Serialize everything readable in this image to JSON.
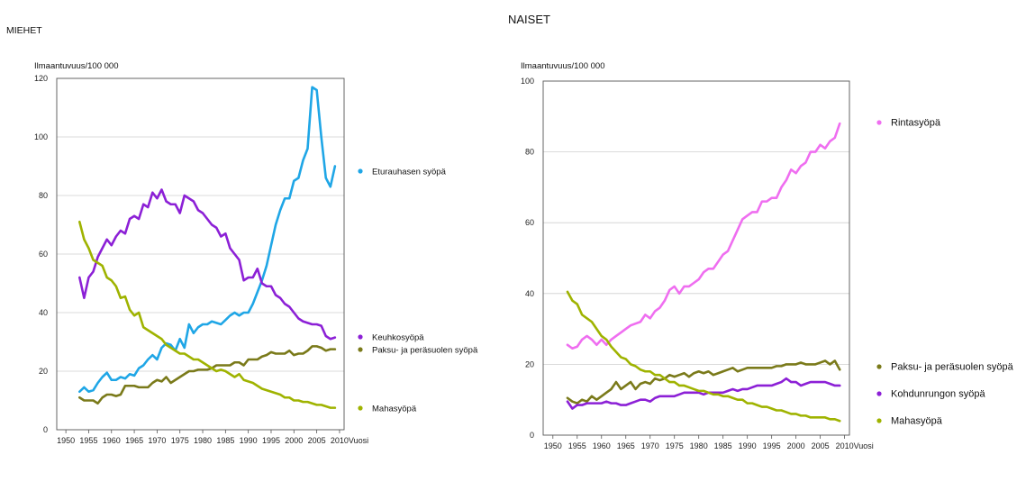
{
  "chart_data": [
    {
      "type": "line",
      "title": "MIEHET",
      "ylabel": "Ilmaantuvuus/100 000",
      "xlabel": "Vuosi",
      "xlim": [
        1948,
        2011
      ],
      "ylim": [
        0,
        120
      ],
      "xticks": [
        1950,
        1955,
        1960,
        1965,
        1970,
        1975,
        1980,
        1985,
        1990,
        1995,
        2000,
        2005,
        2010
      ],
      "yticks": [
        0,
        20,
        40,
        60,
        80,
        100,
        120
      ],
      "grid": "horizontal",
      "legend": "right",
      "series": [
        {
          "name": "Eturauhasen syöpä",
          "color": "#1fa6e6",
          "x": [
            1953,
            1954,
            1955,
            1956,
            1957,
            1958,
            1959,
            1960,
            1961,
            1962,
            1963,
            1964,
            1965,
            1966,
            1967,
            1968,
            1969,
            1970,
            1971,
            1972,
            1973,
            1974,
            1975,
            1976,
            1977,
            1978,
            1979,
            1980,
            1981,
            1982,
            1983,
            1984,
            1985,
            1986,
            1987,
            1988,
            1989,
            1990,
            1991,
            1992,
            1993,
            1994,
            1995,
            1996,
            1997,
            1998,
            1999,
            2000,
            2001,
            2002,
            2003,
            2004,
            2005,
            2006,
            2007,
            2008,
            2009
          ],
          "values": [
            13,
            14.5,
            13,
            13.5,
            16,
            18,
            19.5,
            17,
            17,
            18,
            17.5,
            19,
            18.5,
            21,
            22,
            24,
            25.5,
            24,
            28,
            29.5,
            29,
            27,
            31,
            28,
            36,
            33,
            35,
            36,
            36,
            37,
            36.5,
            36,
            37.5,
            39,
            40,
            39,
            40,
            40,
            43,
            47,
            51,
            56,
            63,
            70,
            75,
            79,
            79,
            85,
            86,
            92,
            96,
            117,
            116,
            100,
            86,
            83,
            90
          ]
        },
        {
          "name": "Keuhkosyöpä",
          "color": "#8c20d6",
          "x": [
            1953,
            1954,
            1955,
            1956,
            1957,
            1958,
            1959,
            1960,
            1961,
            1962,
            1963,
            1964,
            1965,
            1966,
            1967,
            1968,
            1969,
            1970,
            1971,
            1972,
            1973,
            1974,
            1975,
            1976,
            1977,
            1978,
            1979,
            1980,
            1981,
            1982,
            1983,
            1984,
            1985,
            1986,
            1987,
            1988,
            1989,
            1990,
            1991,
            1992,
            1993,
            1994,
            1995,
            1996,
            1997,
            1998,
            1999,
            2000,
            2001,
            2002,
            2003,
            2004,
            2005,
            2006,
            2007,
            2008,
            2009
          ],
          "values": [
            52,
            45,
            52,
            54,
            59,
            62,
            65,
            63,
            66,
            68,
            67,
            72,
            73,
            72,
            77,
            76,
            81,
            79,
            82,
            78,
            77,
            77,
            74,
            80,
            79,
            78,
            75,
            74,
            72,
            70,
            69,
            66,
            67,
            62,
            60,
            58,
            51,
            52,
            52,
            55,
            50,
            49,
            49,
            46,
            45,
            43,
            42,
            40,
            38,
            37,
            36.5,
            36,
            36,
            35.5,
            32,
            31,
            31.5
          ]
        },
        {
          "name": "Paksu- ja peräsuolen syöpä",
          "color": "#7a7a1a",
          "x": [
            1953,
            1954,
            1955,
            1956,
            1957,
            1958,
            1959,
            1960,
            1961,
            1962,
            1963,
            1964,
            1965,
            1966,
            1967,
            1968,
            1969,
            1970,
            1971,
            1972,
            1973,
            1974,
            1975,
            1976,
            1977,
            1978,
            1979,
            1980,
            1981,
            1982,
            1983,
            1984,
            1985,
            1986,
            1987,
            1988,
            1989,
            1990,
            1991,
            1992,
            1993,
            1994,
            1995,
            1996,
            1997,
            1998,
            1999,
            2000,
            2001,
            2002,
            2003,
            2004,
            2005,
            2006,
            2007,
            2008,
            2009
          ],
          "values": [
            11,
            10,
            10,
            10,
            9,
            11,
            12,
            12,
            11.5,
            12,
            15,
            15,
            15,
            14.5,
            14.5,
            14.5,
            16,
            17,
            16.5,
            18,
            16,
            17,
            18,
            19,
            20,
            20,
            20.5,
            20.5,
            20.5,
            21,
            22,
            22,
            22,
            22,
            23,
            23,
            22,
            24,
            24,
            24,
            25,
            25.5,
            26.5,
            26,
            26,
            26,
            27,
            25.5,
            26,
            26,
            27,
            28.5,
            28.5,
            28,
            27,
            27.5,
            27.5
          ]
        },
        {
          "name": "Mahasyöpä",
          "color": "#9fb300",
          "x": [
            1953,
            1954,
            1955,
            1956,
            1957,
            1958,
            1959,
            1960,
            1961,
            1962,
            1963,
            1964,
            1965,
            1966,
            1967,
            1968,
            1969,
            1970,
            1971,
            1972,
            1973,
            1974,
            1975,
            1976,
            1977,
            1978,
            1979,
            1980,
            1981,
            1982,
            1983,
            1984,
            1985,
            1986,
            1987,
            1988,
            1989,
            1990,
            1991,
            1992,
            1993,
            1994,
            1995,
            1996,
            1997,
            1998,
            1999,
            2000,
            2001,
            2002,
            2003,
            2004,
            2005,
            2006,
            2007,
            2008,
            2009
          ],
          "values": [
            71,
            65,
            62,
            58,
            57,
            56,
            52,
            51,
            49,
            45,
            45.5,
            41,
            39,
            40,
            35,
            34,
            33,
            32,
            31,
            29,
            28,
            27,
            26,
            26,
            25,
            24,
            24,
            23,
            22,
            21,
            20,
            20.5,
            20,
            19,
            18,
            19,
            17,
            16.5,
            16,
            15,
            14,
            13.5,
            13,
            12.5,
            12,
            11,
            11,
            10,
            10,
            9.5,
            9.5,
            9,
            8.5,
            8.5,
            8,
            7.5,
            7.5
          ]
        }
      ]
    },
    {
      "type": "line",
      "title": "NAISET",
      "ylabel": "Ilmaantuvuus/100 000",
      "xlabel": "Vuosi",
      "xlim": [
        1948,
        2011
      ],
      "ylim": [
        0,
        100
      ],
      "xticks": [
        1950,
        1955,
        1960,
        1965,
        1970,
        1975,
        1980,
        1985,
        1990,
        1995,
        2000,
        2005,
        2010
      ],
      "yticks": [
        0,
        20,
        40,
        60,
        80,
        100
      ],
      "grid": "horizontal",
      "legend": "right",
      "series": [
        {
          "name": "Rintasyöpä",
          "color": "#ef6ef0",
          "x": [
            1953,
            1954,
            1955,
            1956,
            1957,
            1958,
            1959,
            1960,
            1961,
            1962,
            1963,
            1964,
            1965,
            1966,
            1967,
            1968,
            1969,
            1970,
            1971,
            1972,
            1973,
            1974,
            1975,
            1976,
            1977,
            1978,
            1979,
            1980,
            1981,
            1982,
            1983,
            1984,
            1985,
            1986,
            1987,
            1988,
            1989,
            1990,
            1991,
            1992,
            1993,
            1994,
            1995,
            1996,
            1997,
            1998,
            1999,
            2000,
            2001,
            2002,
            2003,
            2004,
            2005,
            2006,
            2007,
            2008,
            2009
          ],
          "values": [
            25.5,
            24.5,
            25,
            27,
            28,
            27,
            25.5,
            27,
            25.5,
            27,
            28,
            29,
            30,
            31,
            31.5,
            32,
            34,
            33,
            35,
            36,
            38,
            41,
            42,
            40,
            42,
            42,
            43,
            44,
            46,
            47,
            47,
            49,
            51,
            52,
            55,
            58,
            61,
            62,
            63,
            63,
            66,
            66,
            67,
            67,
            70,
            72,
            75,
            74,
            76,
            77,
            80,
            80,
            82,
            81,
            83,
            84,
            88
          ]
        },
        {
          "name": "Paksu- ja peräsuolen syöpä",
          "color": "#7a7a1a",
          "x": [
            1953,
            1954,
            1955,
            1956,
            1957,
            1958,
            1959,
            1960,
            1961,
            1962,
            1963,
            1964,
            1965,
            1966,
            1967,
            1968,
            1969,
            1970,
            1971,
            1972,
            1973,
            1974,
            1975,
            1976,
            1977,
            1978,
            1979,
            1980,
            1981,
            1982,
            1983,
            1984,
            1985,
            1986,
            1987,
            1988,
            1989,
            1990,
            1991,
            1992,
            1993,
            1994,
            1995,
            1996,
            1997,
            1998,
            1999,
            2000,
            2001,
            2002,
            2003,
            2004,
            2005,
            2006,
            2007,
            2008,
            2009
          ],
          "values": [
            10.5,
            9.5,
            9,
            10,
            9.5,
            11,
            10,
            11,
            12,
            13,
            15,
            13,
            14,
            15,
            13,
            14.5,
            15,
            14.5,
            16,
            15.5,
            16,
            17,
            16.5,
            17,
            17.5,
            16.5,
            17.5,
            18,
            17.5,
            18,
            17,
            17.5,
            18,
            18.5,
            19,
            18,
            18.5,
            19,
            19,
            19,
            19,
            19,
            19,
            19.5,
            19.5,
            20,
            20,
            20,
            20.5,
            20,
            20,
            20,
            20.5,
            21,
            20,
            21,
            18.5
          ]
        },
        {
          "name": "Kohdunrungon syöpä",
          "color": "#8c20d6",
          "x": [
            1953,
            1954,
            1955,
            1956,
            1957,
            1958,
            1959,
            1960,
            1961,
            1962,
            1963,
            1964,
            1965,
            1966,
            1967,
            1968,
            1969,
            1970,
            1971,
            1972,
            1973,
            1974,
            1975,
            1976,
            1977,
            1978,
            1979,
            1980,
            1981,
            1982,
            1983,
            1984,
            1985,
            1986,
            1987,
            1988,
            1989,
            1990,
            1991,
            1992,
            1993,
            1994,
            1995,
            1996,
            1997,
            1998,
            1999,
            2000,
            2001,
            2002,
            2003,
            2004,
            2005,
            2006,
            2007,
            2008,
            2009
          ],
          "values": [
            9.5,
            7.5,
            8.5,
            8.5,
            9,
            9,
            9,
            9,
            9.5,
            9,
            9,
            8.5,
            8.5,
            9,
            9.5,
            10,
            10,
            9.5,
            10.5,
            11,
            11,
            11,
            11,
            11.5,
            12,
            12,
            12,
            12,
            11.5,
            12,
            12,
            12,
            12,
            12.5,
            13,
            12.5,
            13,
            13,
            13.5,
            14,
            14,
            14,
            14,
            14.5,
            15,
            16,
            15,
            15,
            14,
            14.5,
            15,
            15,
            15,
            15,
            14.5,
            14,
            14
          ]
        },
        {
          "name": "Mahasyöpä",
          "color": "#9fb300",
          "x": [
            1953,
            1954,
            1955,
            1956,
            1957,
            1958,
            1959,
            1960,
            1961,
            1962,
            1963,
            1964,
            1965,
            1966,
            1967,
            1968,
            1969,
            1970,
            1971,
            1972,
            1973,
            1974,
            1975,
            1976,
            1977,
            1978,
            1979,
            1980,
            1981,
            1982,
            1983,
            1984,
            1985,
            1986,
            1987,
            1988,
            1989,
            1990,
            1991,
            1992,
            1993,
            1994,
            1995,
            1996,
            1997,
            1998,
            1999,
            2000,
            2001,
            2002,
            2003,
            2004,
            2005,
            2006,
            2007,
            2008,
            2009
          ],
          "values": [
            40.5,
            38,
            37,
            34,
            33,
            32,
            30,
            28,
            27,
            25,
            23.5,
            22,
            21.5,
            20,
            19.5,
            18.5,
            18,
            18,
            17,
            17,
            16,
            15,
            15,
            14,
            14,
            13.5,
            13,
            12.5,
            12.5,
            12,
            11.5,
            11.5,
            11,
            11,
            10.5,
            10,
            10,
            9,
            9,
            8.5,
            8,
            8,
            7.5,
            7,
            7,
            6.5,
            6,
            6,
            5.5,
            5.5,
            5,
            5,
            5,
            5,
            4.5,
            4.5,
            4
          ]
        }
      ]
    }
  ]
}
